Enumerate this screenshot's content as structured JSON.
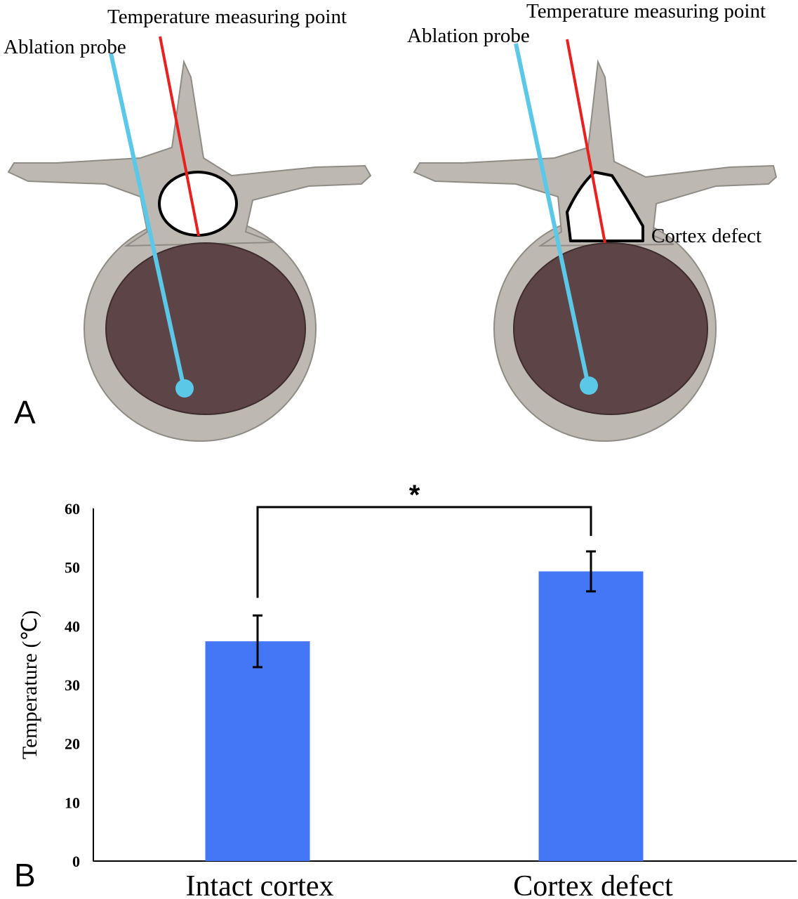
{
  "panels": {
    "a": "A",
    "b": "B"
  },
  "diagram": {
    "left": {
      "probe_label": "Ablation probe",
      "point_label": "Temperature measuring point"
    },
    "right": {
      "probe_label": "Ablation probe",
      "point_label": "Temperature measuring point",
      "defect_label": "Cortex defect"
    }
  },
  "chart_data": {
    "type": "bar",
    "y_label": "Temperature (℃)",
    "categories": [
      "Intact cortex",
      "Cortex defect"
    ],
    "values": [
      37.4,
      49.3
    ],
    "errors": [
      4.4,
      3.4
    ],
    "color": "#4477f5",
    "ylim": [
      0,
      60
    ],
    "yticks": [
      0,
      10,
      20,
      30,
      40,
      50,
      60
    ],
    "annotation": "*"
  }
}
